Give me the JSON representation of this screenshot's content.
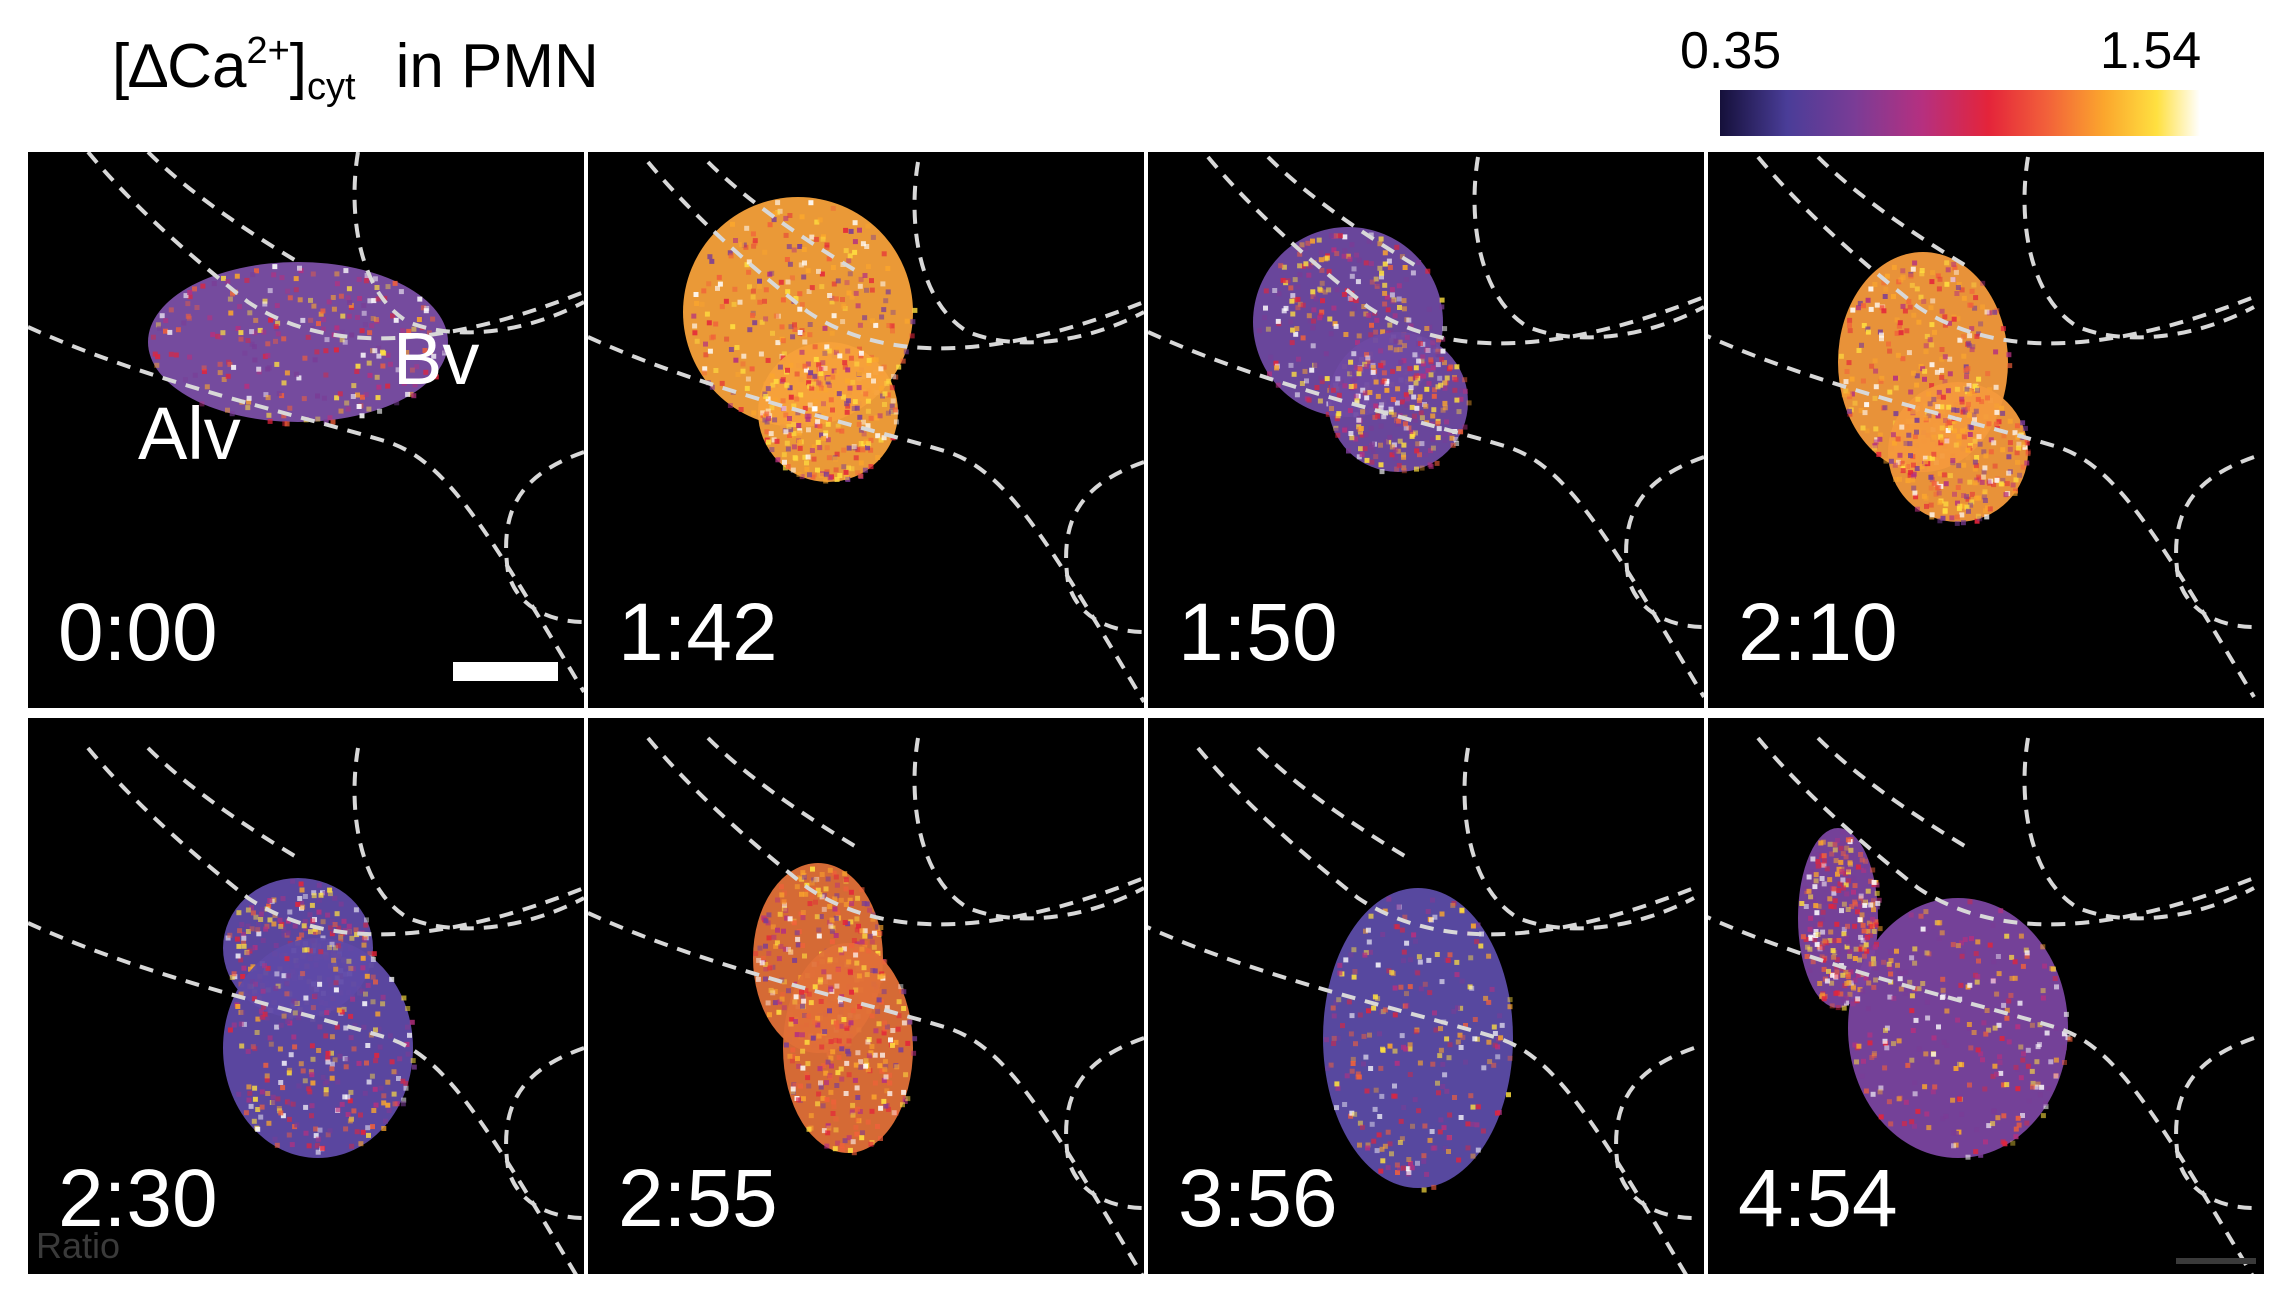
{
  "title": {
    "bracket_open": "[",
    "delta": "∆",
    "ion": "Ca",
    "charge": "2+",
    "bracket_close": "]",
    "subscript": "cyt",
    "suffix": "in PMN"
  },
  "colorbar": {
    "min_label": "0.35",
    "max_label": "1.54",
    "colormap": [
      "#15103a",
      "#4a3d98",
      "#7a3c96",
      "#b53080",
      "#e4243a",
      "#f2603a",
      "#fba62d",
      "#ffe040",
      "#ffffff"
    ]
  },
  "panels": [
    {
      "time": "0:00",
      "cell_color": "#7b4fa6",
      "alv_label": "Alv",
      "bv_label": "Bv"
    },
    {
      "time": "1:42",
      "cell_color": "#f7a13a"
    },
    {
      "time": "1:50",
      "cell_color": "#6f4aa3"
    },
    {
      "time": "2:10",
      "cell_color": "#f49a3c"
    },
    {
      "time": "2:30",
      "cell_color": "#5f4aa8",
      "corner_label": "Ratio"
    },
    {
      "time": "2:55",
      "cell_color": "#e07038"
    },
    {
      "time": "3:56",
      "cell_color": "#5c4ca8"
    },
    {
      "time": "4:54",
      "cell_color": "#7a45a0"
    }
  ],
  "colors": {
    "background": "#000000",
    "boundary_line": "#d8d8d8",
    "text": "#ffffff"
  }
}
